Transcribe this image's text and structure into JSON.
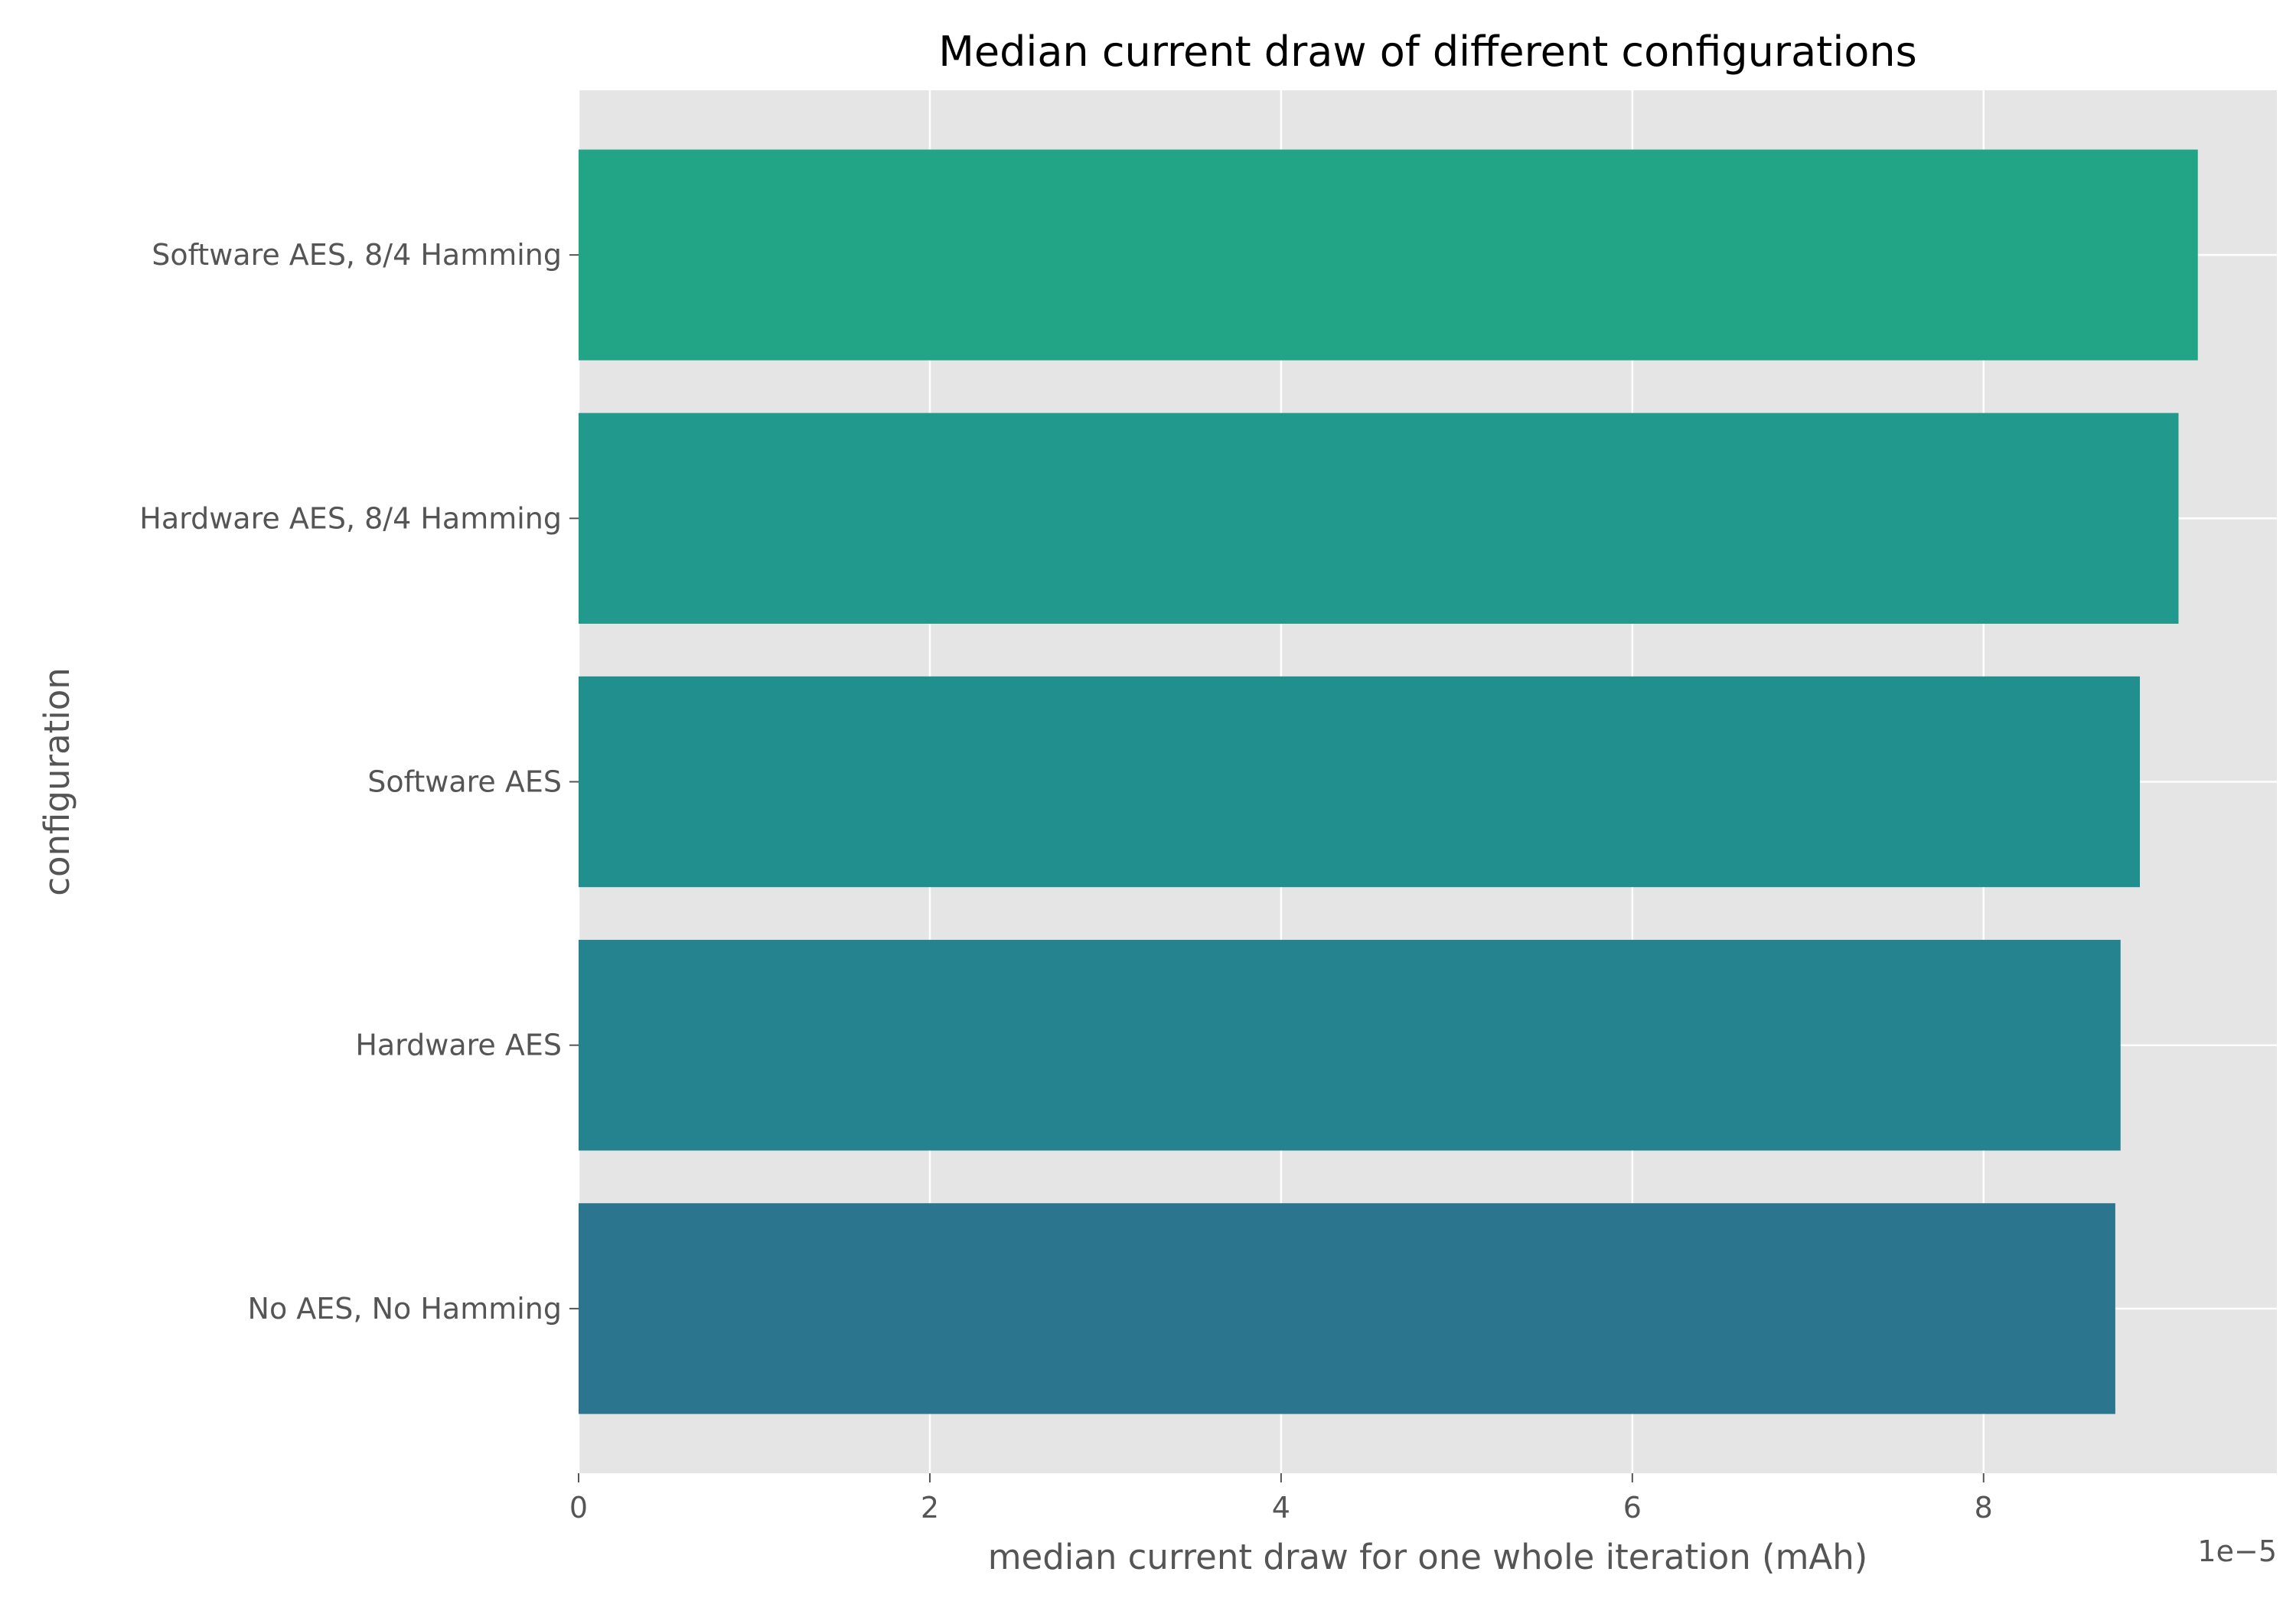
{
  "chart_data": {
    "type": "bar",
    "orientation": "horizontal",
    "title": "Median current draw of different configurations",
    "xlabel": "median current draw for one whole iteration (mAh)",
    "ylabel": "configuration",
    "x_offset_text": "1e−5",
    "xlim": [
      0,
      9.67
    ],
    "xticks": [
      0,
      2,
      4,
      6,
      8
    ],
    "xtick_labels": [
      "0",
      "2",
      "4",
      "6",
      "8"
    ],
    "grid": true,
    "style": "ggplot",
    "categories": [
      "Software AES, 8/4 Hamming",
      "Hardware AES, 8/4 Hamming",
      "Software AES",
      "Hardware AES",
      "No AES, No Hamming"
    ],
    "values": [
      9.22,
      9.11,
      8.89,
      8.78,
      8.75
    ],
    "colors": [
      "#22a587",
      "#21998c",
      "#218f8d",
      "#25838f",
      "#2c758e"
    ],
    "plot_background": "#e5e5e5",
    "grid_color": "#ffffff"
  }
}
